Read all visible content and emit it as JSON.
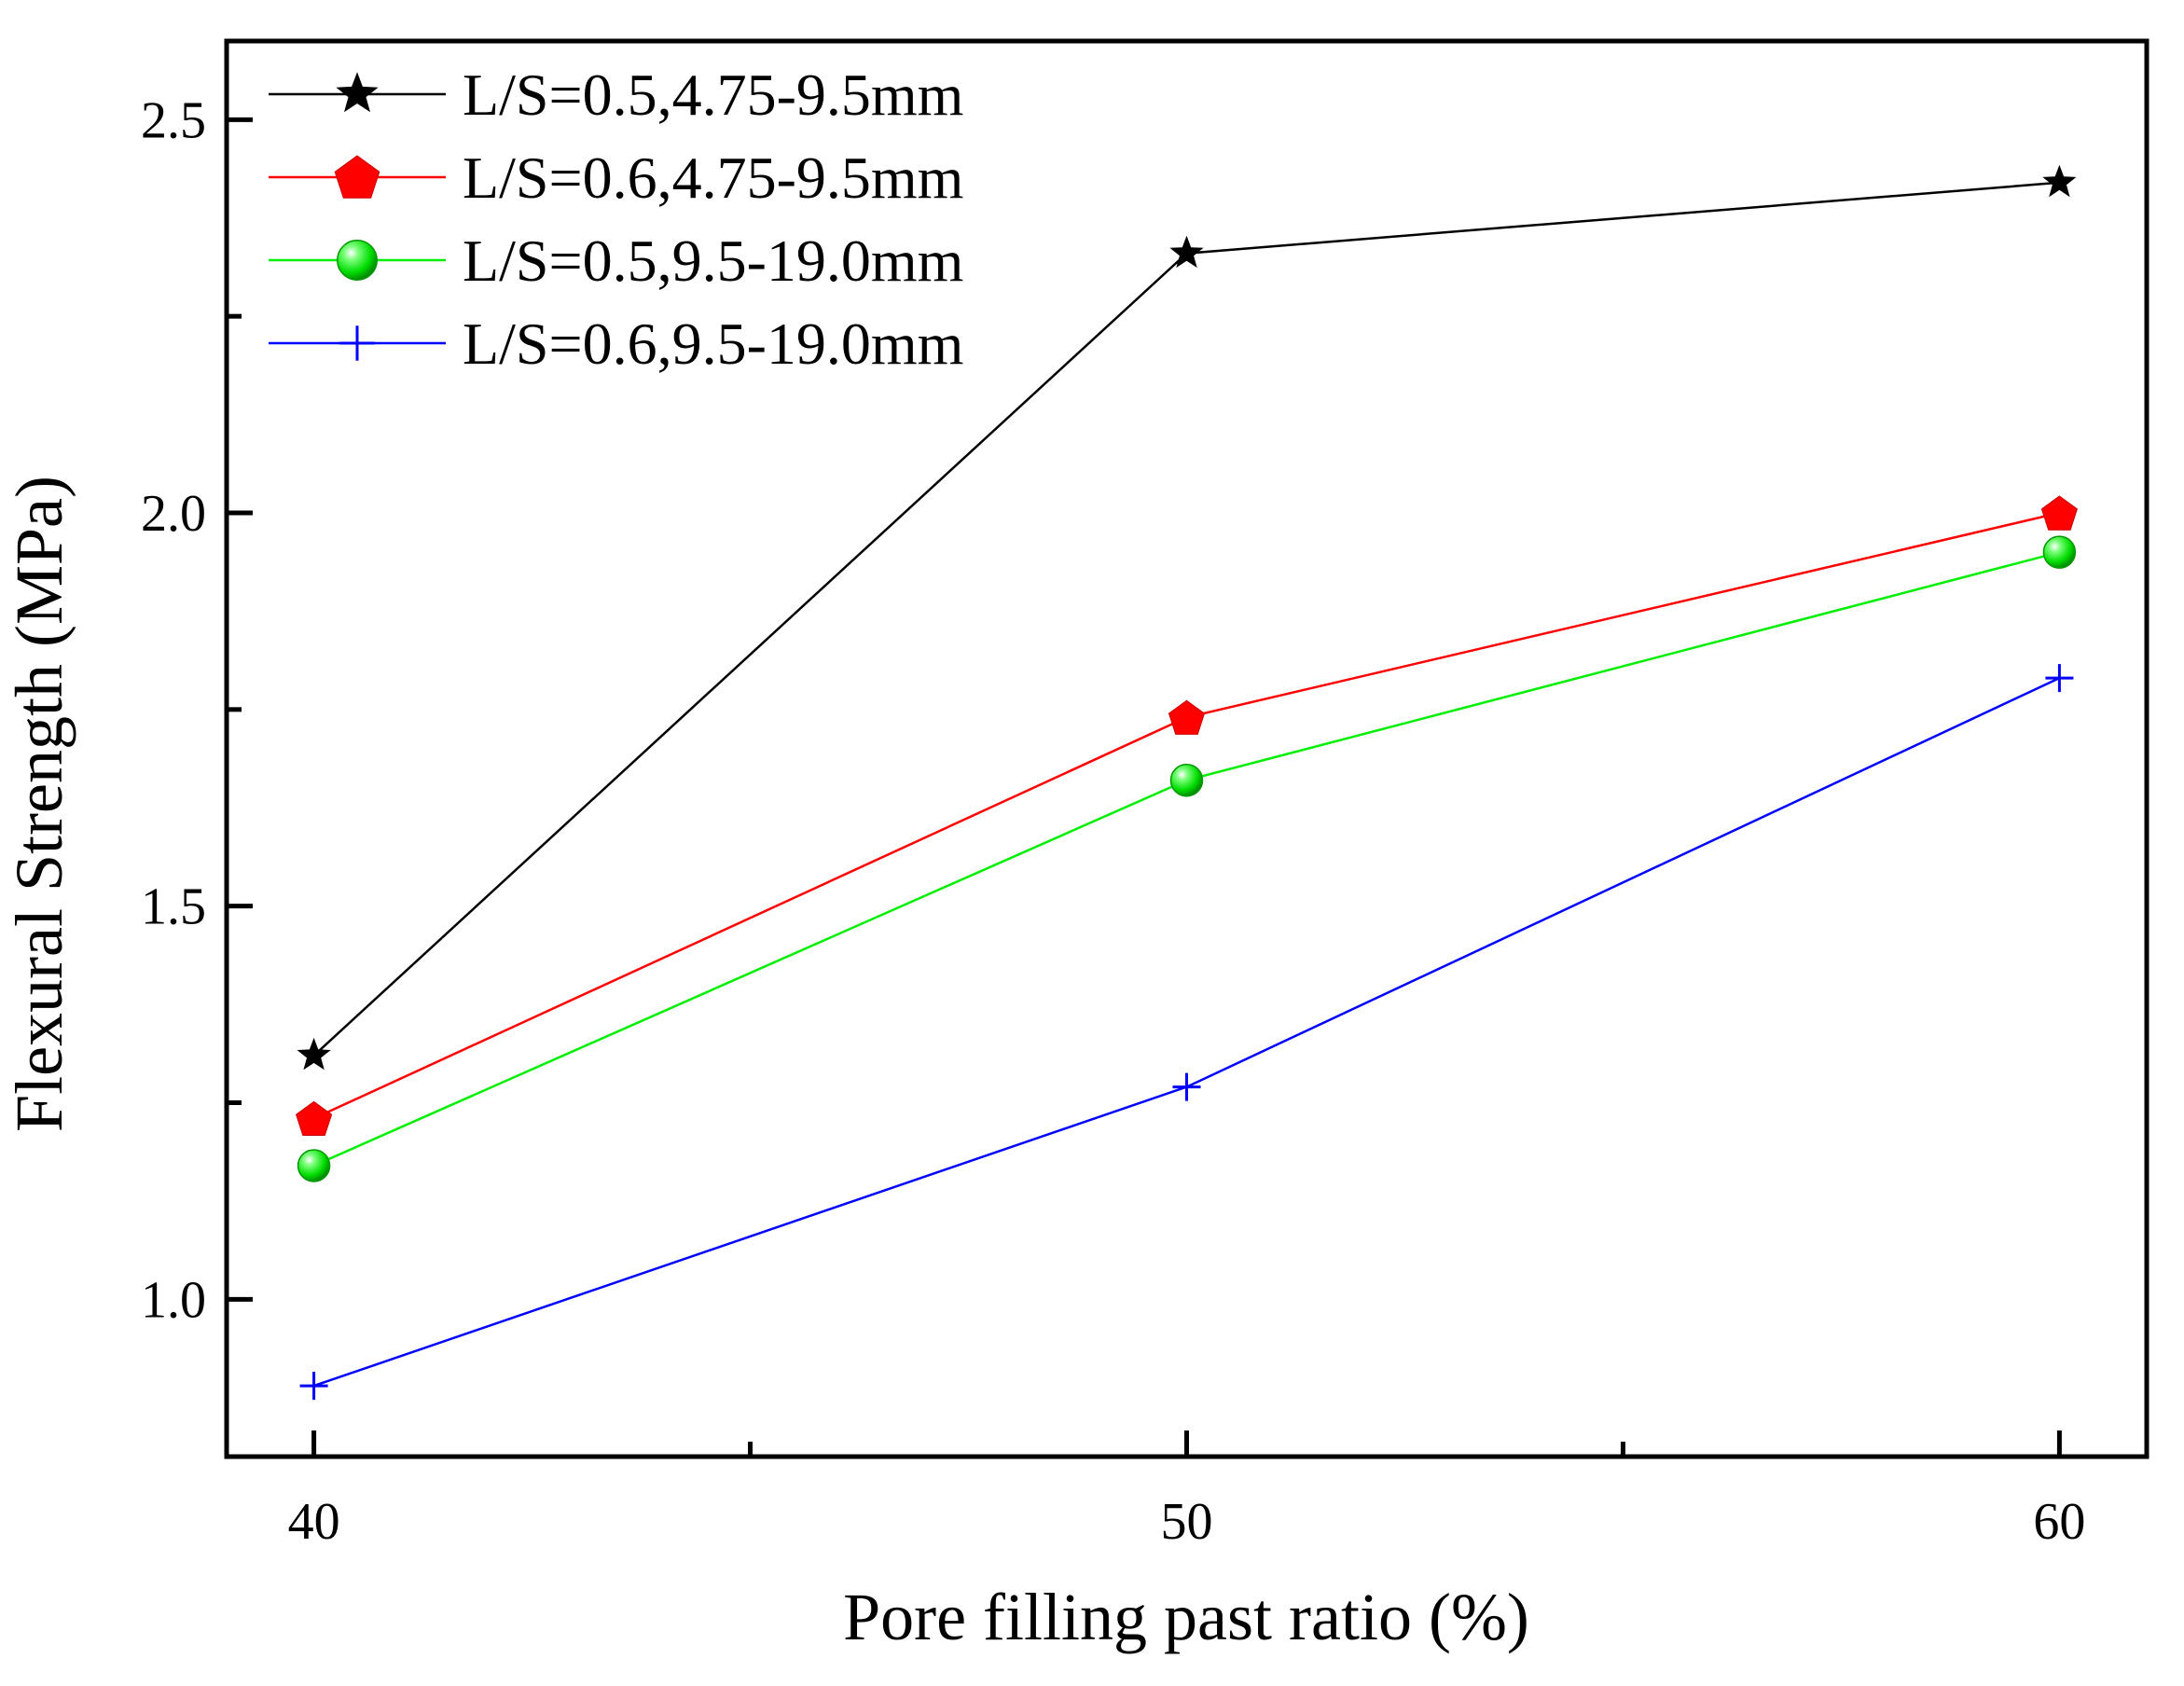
{
  "chart_data": {
    "type": "line",
    "title": "",
    "xlabel": "Pore filling past ratio (%)",
    "ylabel": "Flexural Strength (MPa)",
    "x": [
      40,
      50,
      60
    ],
    "xlim": [
      39,
      61
    ],
    "ylim": [
      0.8,
      2.6
    ],
    "xticks": [
      40,
      50,
      60
    ],
    "xtick_labels": [
      "40",
      "50",
      "60"
    ],
    "xminor_ticks": [
      45,
      55
    ],
    "yticks": [
      1.0,
      1.5,
      2.0,
      2.5
    ],
    "ytick_labels": [
      "1.0",
      "1.5",
      "2.0",
      "2.5"
    ],
    "yminor_ticks": [
      1.25,
      1.75,
      2.25
    ],
    "grid": false,
    "legend_position": "top-left",
    "series": [
      {
        "name": "L/S=0.5,4.75-9.5mm",
        "values": [
          1.31,
          2.33,
          2.42
        ],
        "color": "#000000",
        "marker": "star"
      },
      {
        "name": "L/S=0.6,4.75-9.5mm",
        "values": [
          1.23,
          1.74,
          2.0
        ],
        "color": "#ff0000",
        "marker": "pentagon"
      },
      {
        "name": "L/S=0.5,9.5-19.0mm",
        "values": [
          1.17,
          1.66,
          1.95
        ],
        "color": "#00ee00",
        "marker": "sphere"
      },
      {
        "name": "L/S=0.6,9.5-19.0mm",
        "values": [
          0.89,
          1.27,
          1.79
        ],
        "color": "#0000ff",
        "marker": "plus"
      }
    ]
  }
}
